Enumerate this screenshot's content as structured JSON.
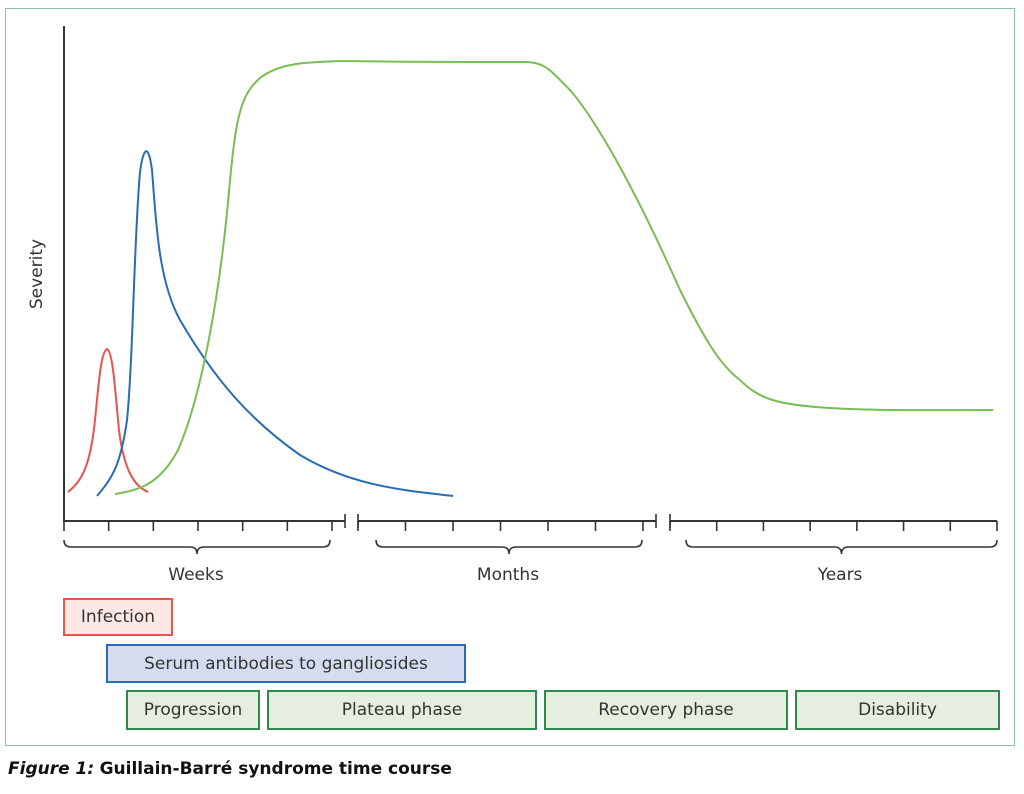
{
  "diagram": {
    "y_axis_label": "Severity",
    "scale_labels": [
      "Weeks",
      "Months",
      "Years"
    ],
    "phases": [
      {
        "id": "infection",
        "label": "Infection"
      },
      {
        "id": "antibodies",
        "label": "Serum antibodies to gangliosides"
      },
      {
        "id": "progression",
        "label": "Progression"
      },
      {
        "id": "plateau",
        "label": "Plateau phase"
      },
      {
        "id": "recovery",
        "label": "Recovery phase"
      },
      {
        "id": "disability",
        "label": "Disability"
      }
    ],
    "colors": {
      "infection_stroke": "#e8534a",
      "infection_fill": "#fde8e6",
      "antibody_stroke": "#2a6cb3",
      "antibody_fill": "#d6dcf0",
      "disease_stroke": "#78be52",
      "phase_border": "#2e8a4f",
      "phase_fill": "#e6efdf",
      "frame_border": "#8fc1a6",
      "axis": "#333333"
    }
  },
  "caption": {
    "figure_number": "Figure 1:",
    "title": "Guillain-Barré syndrome time course"
  }
}
